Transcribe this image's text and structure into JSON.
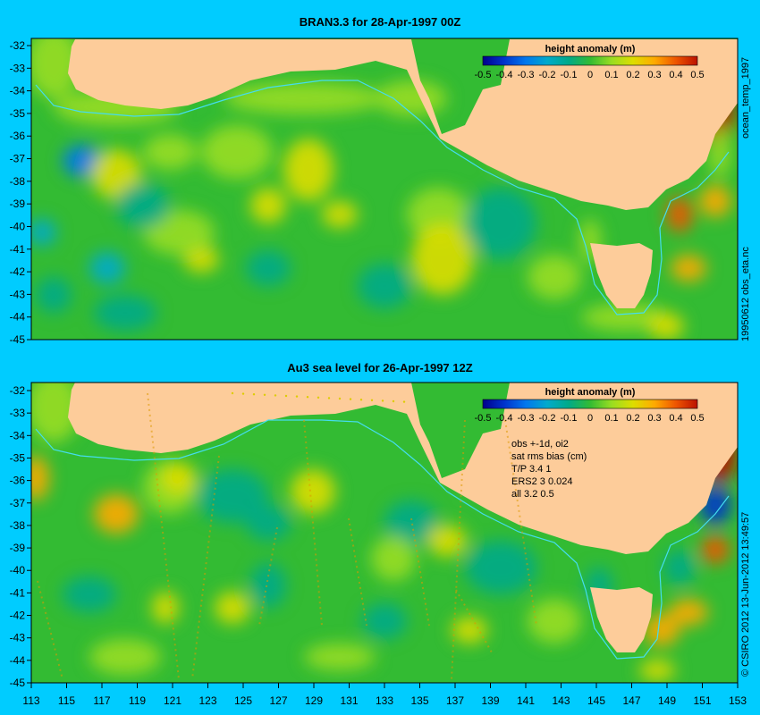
{
  "panels": [
    {
      "title": "BRAN3.3 for 28-Apr-1997 00Z",
      "colorbar": {
        "title": "height anomaly (m)",
        "ticks": [
          "-0.5",
          "-0.4",
          "-0.3",
          "-0.2",
          "-0.1",
          "0",
          "0.1",
          "0.2",
          "0.3",
          "0.4",
          "0.5"
        ]
      },
      "side_labels": {
        "top": "ocean_temp_1997",
        "bottom": "19950612 obs_eta.nc"
      }
    },
    {
      "title": "Au3 sea level  for 26-Apr-1997 12Z",
      "colorbar": {
        "title": "height anomaly (m)",
        "ticks": [
          "-0.5",
          "-0.4",
          "-0.3",
          "-0.2",
          "-0.1",
          "0",
          "0.1",
          "0.2",
          "0.3",
          "0.4",
          "0.5"
        ]
      },
      "stats": [
        "obs +-1d, oi2",
        "sat rms bias (cm)",
        "T/P  3.4 1",
        "ERS2 3 0.024",
        "all 3.2 0.5"
      ],
      "side_labels": {
        "bottom": "© CSIRO 2012  13-Jun-2012 13:49:57"
      }
    }
  ],
  "y_ticks": [
    "-32",
    "-33",
    "-34",
    "-35",
    "-36",
    "-37",
    "-38",
    "-39",
    "-40",
    "-41",
    "-42",
    "-43",
    "-44",
    "-45"
  ],
  "x_ticks": [
    "113",
    "115",
    "117",
    "119",
    "121",
    "123",
    "125",
    "127",
    "129",
    "131",
    "133",
    "135",
    "137",
    "139",
    "141",
    "143",
    "145",
    "147",
    "149",
    "151",
    "153"
  ],
  "colors": {
    "background": "#00ccff",
    "land": "#fdcc9a",
    "ocean_base": "#33bb33",
    "contour": "#44ddee",
    "colormap": [
      "#00008b",
      "#0033cc",
      "#0077ee",
      "#00aacc",
      "#00aa88",
      "#33bb33",
      "#99dd22",
      "#dddd00",
      "#ffaa00",
      "#ee5500",
      "#bb1100"
    ]
  }
}
